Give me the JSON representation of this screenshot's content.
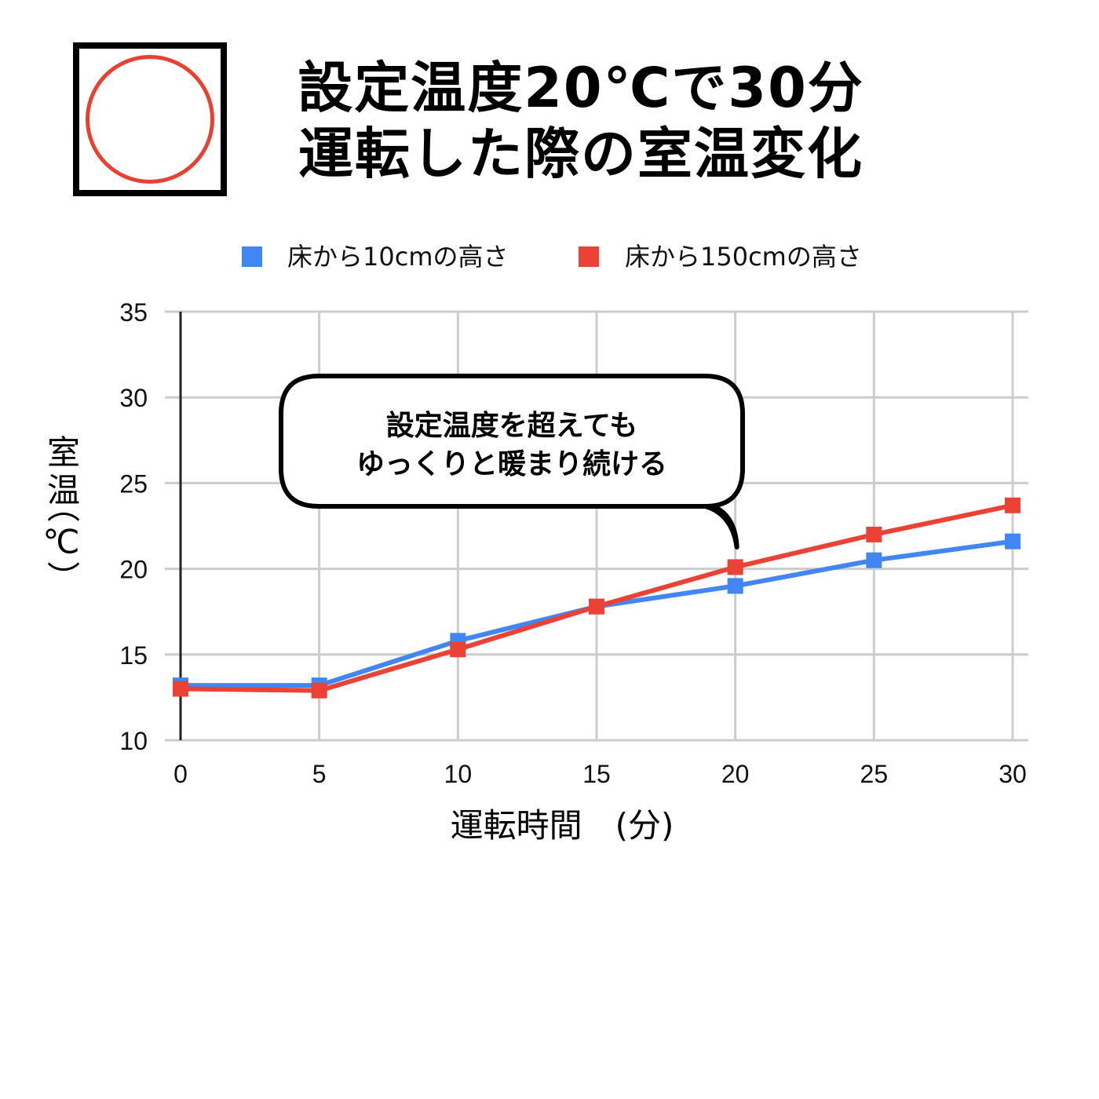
{
  "indicator": {
    "symbol": "circle-mark",
    "color": "#e84033"
  },
  "title": {
    "line1": "設定温度20℃で30分",
    "line2": "運転した際の室温変化"
  },
  "chart_data": {
    "type": "line",
    "x": [
      0,
      5,
      10,
      15,
      20,
      25,
      30
    ],
    "xlim": [
      0,
      30
    ],
    "ylim": [
      10,
      35
    ],
    "x_ticks": [
      "0",
      "5",
      "10",
      "15",
      "20",
      "25",
      "30"
    ],
    "y_ticks": [
      "10",
      "15",
      "20",
      "25",
      "30",
      "35"
    ],
    "xlabel": "運転時間　(分)",
    "ylabel_top": "室温",
    "ylabel_unit": "（℃）",
    "grid": true,
    "legend_position": "top",
    "series": [
      {
        "name": "床から10cmの高さ",
        "color": "#4285f4",
        "values": [
          13.2,
          13.2,
          15.8,
          17.8,
          19.0,
          20.5,
          21.6
        ]
      },
      {
        "name": "床から150cmの高さ",
        "color": "#ea4335",
        "values": [
          13.0,
          12.9,
          15.3,
          17.8,
          20.1,
          22.0,
          23.7
        ]
      }
    ],
    "annotation": {
      "line1": "設定温度を超えても",
      "line2": "ゆっくりと暖まり続ける",
      "points_to_x": 20
    }
  }
}
